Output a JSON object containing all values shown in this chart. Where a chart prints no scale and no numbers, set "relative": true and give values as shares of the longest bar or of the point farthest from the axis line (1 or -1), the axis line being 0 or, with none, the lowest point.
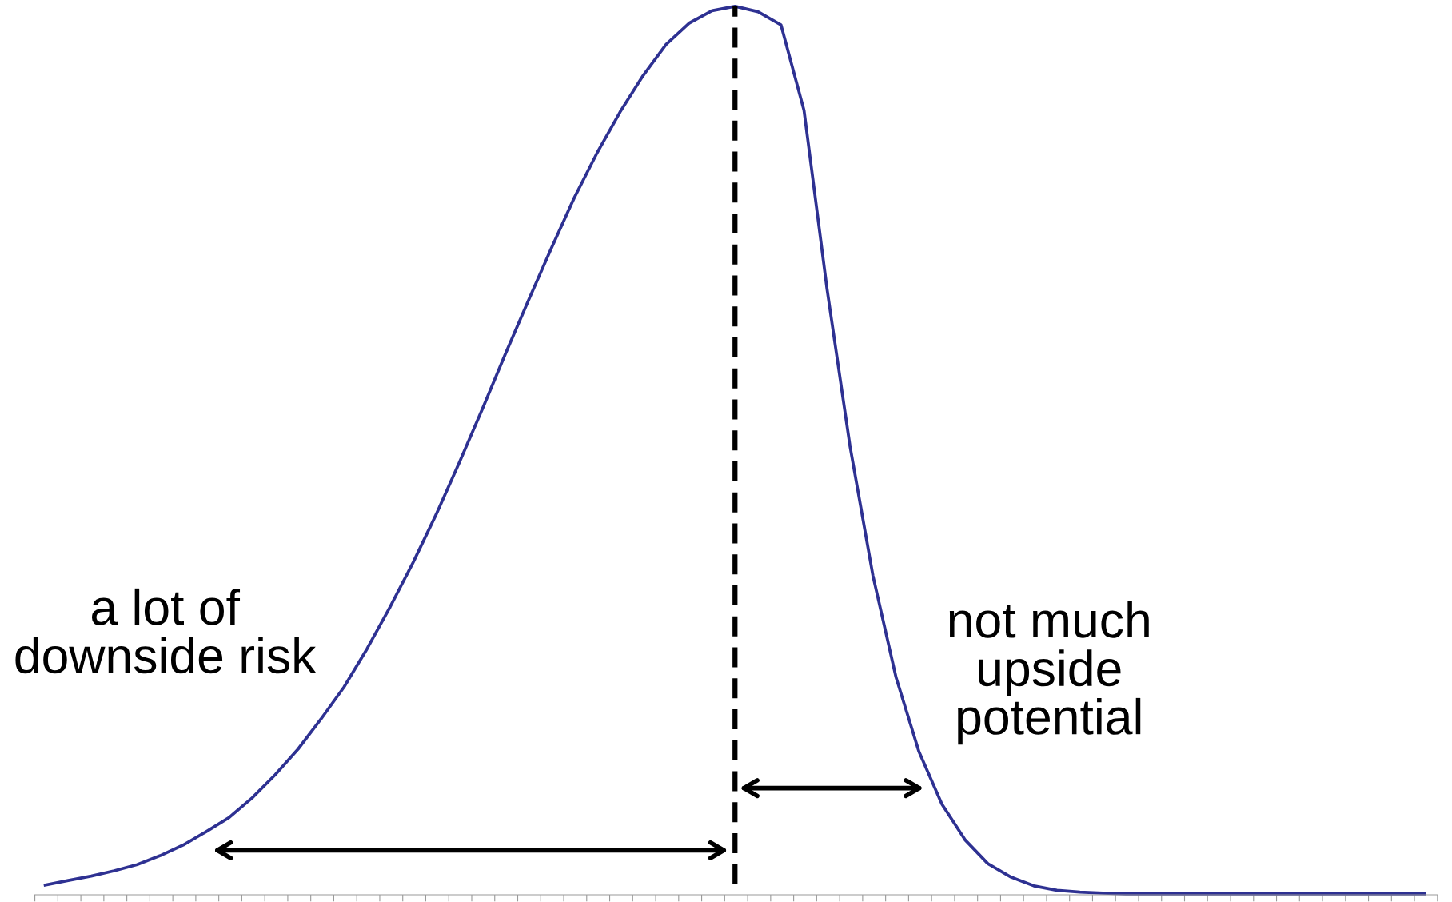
{
  "chart_data": {
    "type": "line",
    "relative": true,
    "grid": false,
    "legend": false,
    "marker": "none",
    "line_style": "solid",
    "categories": [
      null,
      null,
      null,
      null,
      null,
      null,
      null,
      null,
      null,
      null,
      null,
      null,
      null,
      null,
      null,
      null,
      null,
      null,
      null,
      null,
      null,
      null,
      null,
      null,
      null,
      null,
      null,
      null,
      null,
      null,
      null,
      null,
      null,
      null,
      null,
      null,
      null,
      null,
      null,
      null,
      null,
      null,
      null,
      null,
      null,
      null,
      null,
      null,
      null,
      null,
      null,
      null,
      null,
      null,
      null,
      null,
      null,
      null,
      null,
      null,
      null
    ],
    "series": [
      {
        "color": "#2e3192",
        "values": [
          0.011,
          0.016,
          0.021,
          0.027,
          0.034,
          0.044,
          0.056,
          0.071,
          0.087,
          0.109,
          0.135,
          0.164,
          0.198,
          0.234,
          0.277,
          0.324,
          0.374,
          0.428,
          0.486,
          0.546,
          0.608,
          0.668,
          0.727,
          0.784,
          0.835,
          0.881,
          0.922,
          0.957,
          0.981,
          0.995,
          1.0,
          0.994,
          0.979,
          0.883,
          0.682,
          0.505,
          0.359,
          0.245,
          0.161,
          0.102,
          0.062,
          0.035,
          0.02,
          0.01,
          0.005,
          0.003,
          0.002,
          0.001,
          0.001,
          0.001,
          0.001,
          0.001,
          0.001,
          0.001,
          0.001,
          0.001,
          0.001,
          0.001,
          0.001,
          0.001,
          0.001
        ]
      }
    ],
    "annotations": [
      "a lot of\ndownside risk",
      "not much\nupside\npotential"
    ]
  }
}
